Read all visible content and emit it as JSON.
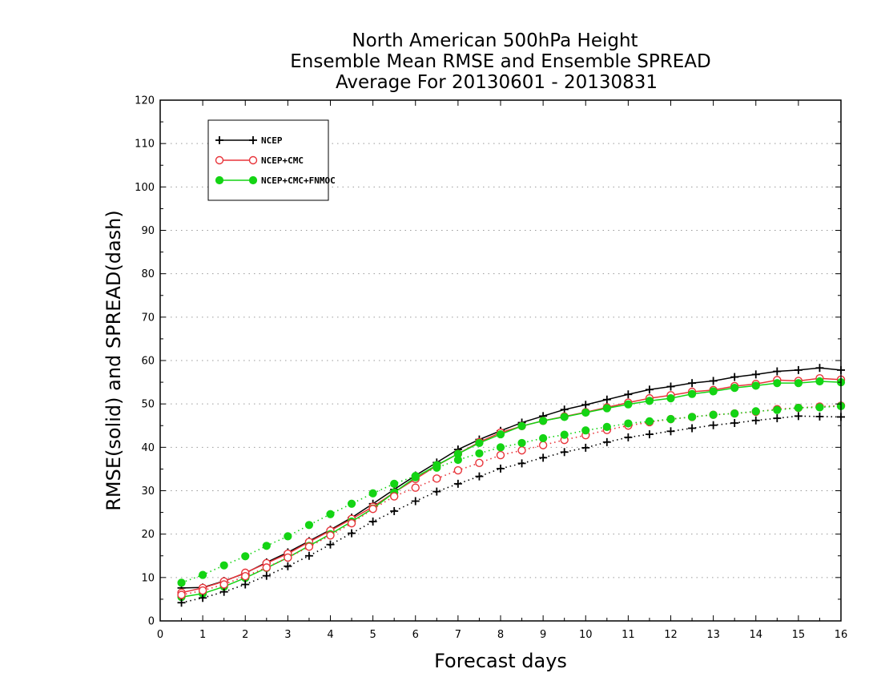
{
  "colors": {
    "ncep": "#000000",
    "ncep_cmc": "#e8343a",
    "ncep_cmc_fnmoc": "#14d414",
    "grid": "#9a9a9a",
    "frame": "#000000"
  },
  "chart_data": {
    "type": "line",
    "title": [
      "North American 500hPa Height",
      "Ensemble Mean RMSE and Ensemble SPREAD",
      "Average For 20130601 - 20130831"
    ],
    "xlabel": "Forecast days",
    "ylabel": "RMSE(solid) and SPREAD(dash)",
    "xlim": [
      0,
      16
    ],
    "ylim": [
      0,
      120
    ],
    "xticks": [
      "0",
      "1",
      "2",
      "3",
      "4",
      "5",
      "6",
      "7",
      "8",
      "9",
      "10",
      "11",
      "12",
      "13",
      "14",
      "15",
      "16"
    ],
    "yticks": [
      "0",
      "10",
      "20",
      "30",
      "40",
      "50",
      "60",
      "70",
      "80",
      "90",
      "100",
      "110",
      "120"
    ],
    "grid": true,
    "legend_position": "top-left",
    "legend": [
      {
        "label": "NCEP",
        "marker": "plus",
        "color_key": "ncep"
      },
      {
        "label": "NCEP+CMC",
        "marker": "open-circle",
        "color_key": "ncep_cmc"
      },
      {
        "label": "NCEP+CMC+FNMOC",
        "marker": "filled-circle",
        "color_key": "ncep_cmc_fnmoc"
      }
    ],
    "x": [
      0.5,
      1,
      1.5,
      2,
      2.5,
      3,
      3.5,
      4,
      4.5,
      5,
      5.5,
      6,
      6.5,
      7,
      7.5,
      8,
      8.5,
      9,
      9.5,
      10,
      10.5,
      11,
      11.5,
      12,
      12.5,
      13,
      13.5,
      14,
      14.5,
      15,
      15.5,
      16
    ],
    "series": [
      {
        "legend_index": 0,
        "style": "solid",
        "marker": "plus",
        "color_key": "ncep",
        "values": [
          7.6,
          7.7,
          9.2,
          11.0,
          13.5,
          15.8,
          18.4,
          21.0,
          23.8,
          27.0,
          30.3,
          33.5,
          36.5,
          39.5,
          41.8,
          43.8,
          45.7,
          47.2,
          48.7,
          49.8,
          51.0,
          52.2,
          53.3,
          54.0,
          54.8,
          55.3,
          56.2,
          56.8,
          57.5,
          57.8,
          58.3,
          57.8
        ]
      },
      {
        "legend_index": 1,
        "style": "solid",
        "marker": "open-circle",
        "color_key": "ncep_cmc",
        "values": [
          6.5,
          7.6,
          9.1,
          11.1,
          13.3,
          15.5,
          18.2,
          20.8,
          23.5,
          26.3,
          29.6,
          32.7,
          35.8,
          38.5,
          41.2,
          43.4,
          44.9,
          46.1,
          47.1,
          48.1,
          49.2,
          50.3,
          51.3,
          52.0,
          52.8,
          53.2,
          54.1,
          54.6,
          55.5,
          55.3,
          55.9,
          55.6
        ]
      },
      {
        "legend_index": 2,
        "style": "solid",
        "marker": "filled-circle",
        "color_key": "ncep_cmc_fnmoc",
        "values": [
          5.5,
          6.3,
          7.9,
          9.9,
          12.2,
          14.6,
          17.3,
          20.0,
          22.9,
          25.9,
          29.6,
          33.1,
          35.9,
          38.5,
          41.0,
          43.0,
          44.9,
          46.1,
          47.0,
          48.0,
          49.0,
          49.9,
          50.7,
          51.3,
          52.3,
          52.9,
          53.7,
          54.2,
          54.8,
          54.8,
          55.2,
          55.0
        ]
      },
      {
        "legend_index": 0,
        "style": "dash",
        "marker": "plus",
        "color_key": "ncep",
        "values": [
          4.2,
          5.3,
          6.7,
          8.4,
          10.4,
          12.6,
          15.0,
          17.6,
          20.2,
          22.9,
          25.3,
          27.6,
          29.8,
          31.6,
          33.3,
          35.1,
          36.3,
          37.6,
          38.9,
          39.9,
          41.2,
          42.3,
          43.0,
          43.7,
          44.4,
          45.1,
          45.6,
          46.2,
          46.7,
          47.2,
          47.1,
          47.0
        ]
      },
      {
        "legend_index": 1,
        "style": "dash",
        "marker": "open-circle",
        "color_key": "ncep_cmc",
        "values": [
          6.0,
          7.0,
          8.4,
          10.3,
          12.3,
          14.6,
          17.1,
          19.7,
          22.5,
          25.8,
          28.7,
          30.7,
          32.8,
          34.7,
          36.4,
          38.2,
          39.3,
          40.5,
          41.7,
          42.8,
          44.0,
          45.0,
          45.8,
          46.5,
          47.0,
          47.5,
          47.8,
          48.2,
          48.8,
          49.1,
          49.4,
          49.6
        ]
      },
      {
        "legend_index": 2,
        "style": "dash",
        "marker": "filled-circle",
        "color_key": "ncep_cmc_fnmoc",
        "values": [
          8.8,
          10.6,
          12.8,
          14.9,
          17.3,
          19.5,
          22.1,
          24.6,
          27.0,
          29.4,
          31.6,
          33.4,
          35.3,
          37.1,
          38.6,
          40.0,
          41.0,
          42.1,
          42.9,
          43.9,
          44.7,
          45.5,
          46.0,
          46.5,
          47.0,
          47.5,
          47.8,
          48.3,
          48.6,
          49.1,
          49.2,
          49.5
        ]
      }
    ]
  }
}
